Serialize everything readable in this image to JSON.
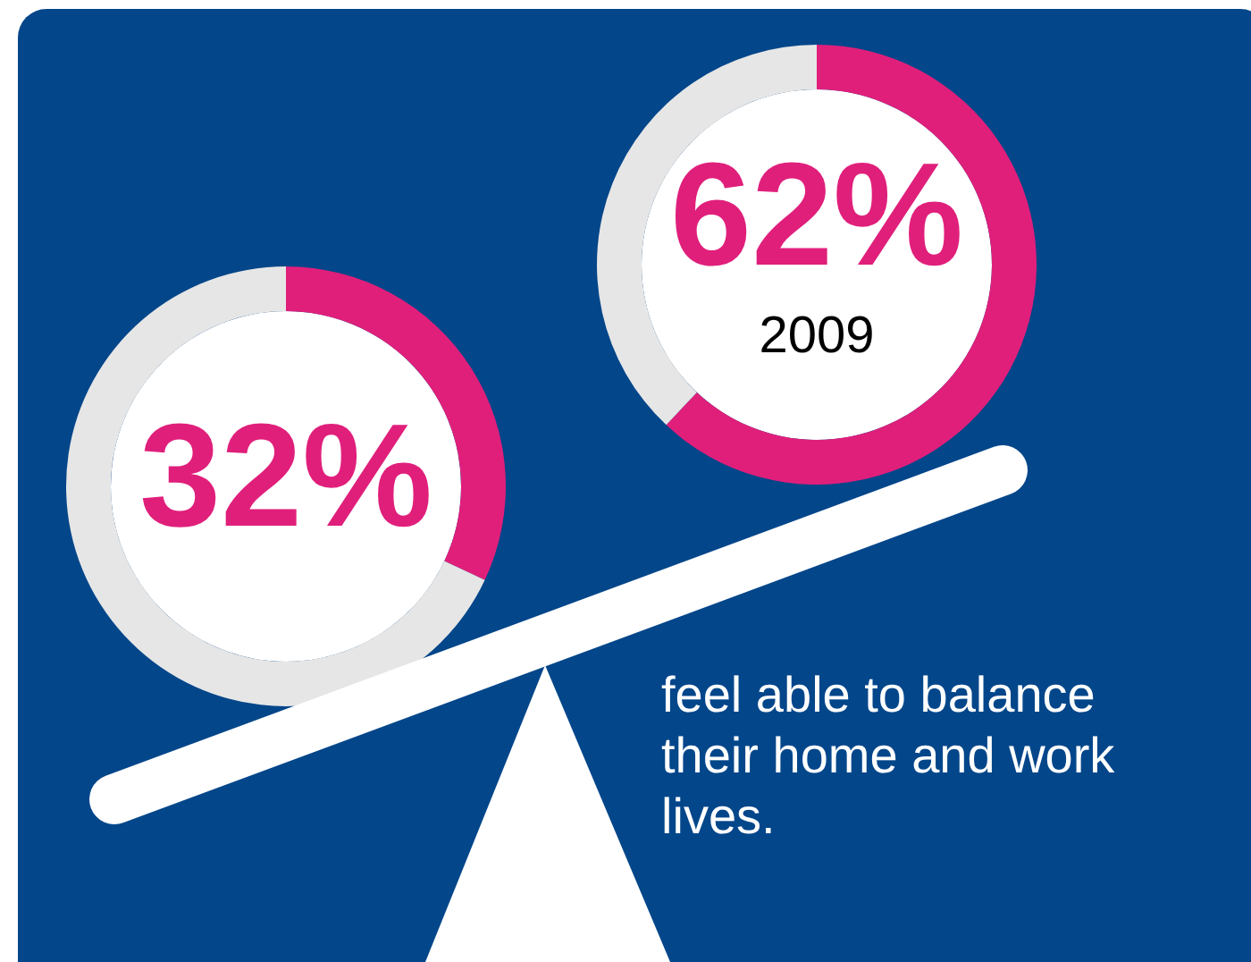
{
  "chart_data": [
    {
      "type": "donut",
      "categories": [
        null,
        null
      ],
      "values": [
        32,
        68
      ],
      "colors": [
        "#e01f7b",
        "#e6e6e6"
      ],
      "value_labels": [
        "32%",
        null
      ]
    },
    {
      "type": "donut",
      "categories": [
        null,
        null
      ],
      "values": [
        62,
        38
      ],
      "colors": [
        "#e01f7b",
        "#e6e6e6"
      ],
      "value_labels": [
        "62%",
        null
      ],
      "annotations": [
        "2009",
        "feel able to balance their home and work lives."
      ]
    }
  ]
}
